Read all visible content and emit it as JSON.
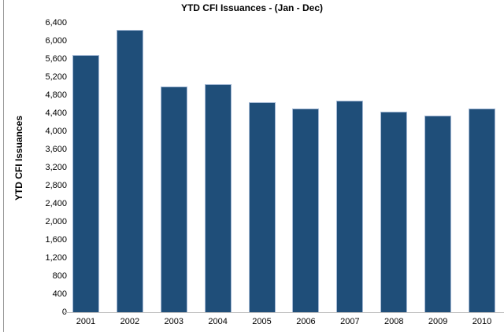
{
  "chart_data": {
    "type": "bar",
    "title": "YTD CFI Issuances - (Jan - Dec)",
    "ylabel": "YTD CFI Issuances",
    "xlabel": "",
    "categories": [
      "2001",
      "2002",
      "2003",
      "2004",
      "2005",
      "2006",
      "2007",
      "2008",
      "2009",
      "2010"
    ],
    "values": [
      5700,
      6250,
      5000,
      5050,
      4650,
      4500,
      4680,
      4430,
      4360,
      4500
    ],
    "ylim": [
      0,
      6400
    ],
    "ytick_step": 400,
    "ytick_labels": [
      "0",
      "400",
      "800",
      "1,200",
      "1,600",
      "2,000",
      "2,400",
      "2,800",
      "3,200",
      "3,600",
      "4,000",
      "4,400",
      "4,800",
      "5,200",
      "5,600",
      "6,000",
      "6,400"
    ],
    "grid": false,
    "legend": "none",
    "bar_color": "#1f4e79",
    "bar_border_color": "#a3b8d4",
    "axis_line_color": "#bfbfbf",
    "text_color": "#000000"
  }
}
